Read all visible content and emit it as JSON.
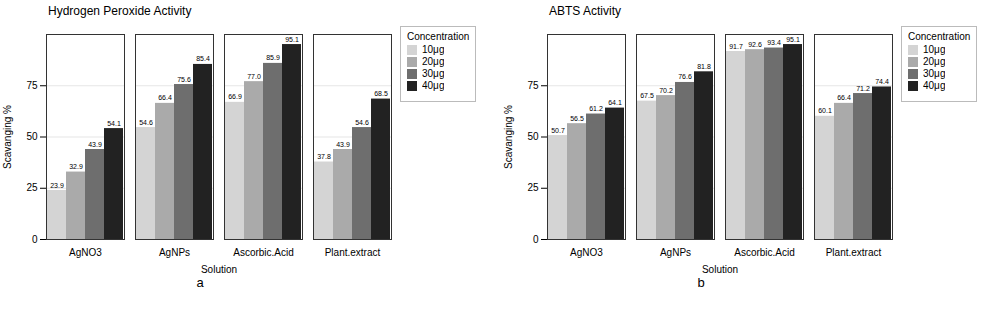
{
  "chart_data": [
    {
      "type": "bar",
      "title": "Hydrogen Peroxide Activity",
      "xlabel": "Solution",
      "ylabel": "Scavanging %",
      "categories": [
        "AgNO3",
        "AgNPs",
        "Ascorbic.Acid",
        "Plant.extract"
      ],
      "series": [
        {
          "name": "10μg",
          "color": "#d4d4d4",
          "values": [
            23.9,
            54.6,
            66.9,
            37.8
          ],
          "value_labels": [
            "23.9",
            "54.6",
            "66.9",
            "37.8"
          ]
        },
        {
          "name": "20μg",
          "color": "#aaaaaa",
          "values": [
            32.9,
            66.4,
            77.0,
            43.9
          ],
          "value_labels": [
            "32.9",
            "66.4",
            "77.0",
            "43.9"
          ]
        },
        {
          "name": "30μg",
          "color": "#6e6e6e",
          "values": [
            43.9,
            75.6,
            85.9,
            54.6
          ],
          "value_labels": [
            "43.9",
            "75.6",
            "85.9",
            "54.6"
          ]
        },
        {
          "name": "40μg",
          "color": "#222222",
          "values": [
            54.1,
            85.4,
            95.1,
            68.5
          ],
          "value_labels": [
            "54.1",
            "85.4",
            "95.1",
            "68.5"
          ]
        }
      ],
      "legend_title": "Concentration",
      "annotations": [
        "a"
      ],
      "ylim": [
        0,
        100
      ],
      "yticks": [
        0,
        25,
        50,
        75
      ],
      "grid": true,
      "legend": "right",
      "data_labels": true
    },
    {
      "type": "bar",
      "title": "ABTS Activity",
      "xlabel": "Solution",
      "ylabel": "Scavanging %",
      "categories": [
        "AgNO3",
        "AgNPs",
        "Ascorbic.Acid",
        "Plant.extract"
      ],
      "series": [
        {
          "name": "10μg",
          "color": "#d4d4d4",
          "values": [
            50.7,
            67.5,
            91.7,
            60.1
          ],
          "value_labels": [
            "50.7",
            "67.5",
            "91.7",
            "60.1"
          ]
        },
        {
          "name": "20μg",
          "color": "#aaaaaa",
          "values": [
            56.5,
            70.2,
            92.6,
            66.4
          ],
          "value_labels": [
            "56.5",
            "70.2",
            "92.6",
            "66.4"
          ]
        },
        {
          "name": "30μg",
          "color": "#6e6e6e",
          "values": [
            61.2,
            76.6,
            93.4,
            71.2
          ],
          "value_labels": [
            "61.2",
            "76.6",
            "93.4",
            "71.2"
          ]
        },
        {
          "name": "40μg",
          "color": "#222222",
          "values": [
            64.1,
            81.8,
            95.1,
            74.4
          ],
          "value_labels": [
            "64.1",
            "81.8",
            "95.1",
            "74.4"
          ]
        }
      ],
      "legend_title": "Concentration",
      "annotations": [
        "b"
      ],
      "ylim": [
        0,
        100
      ],
      "yticks": [
        0,
        25,
        50,
        75
      ],
      "grid": true,
      "legend": "right",
      "data_labels": true
    }
  ]
}
